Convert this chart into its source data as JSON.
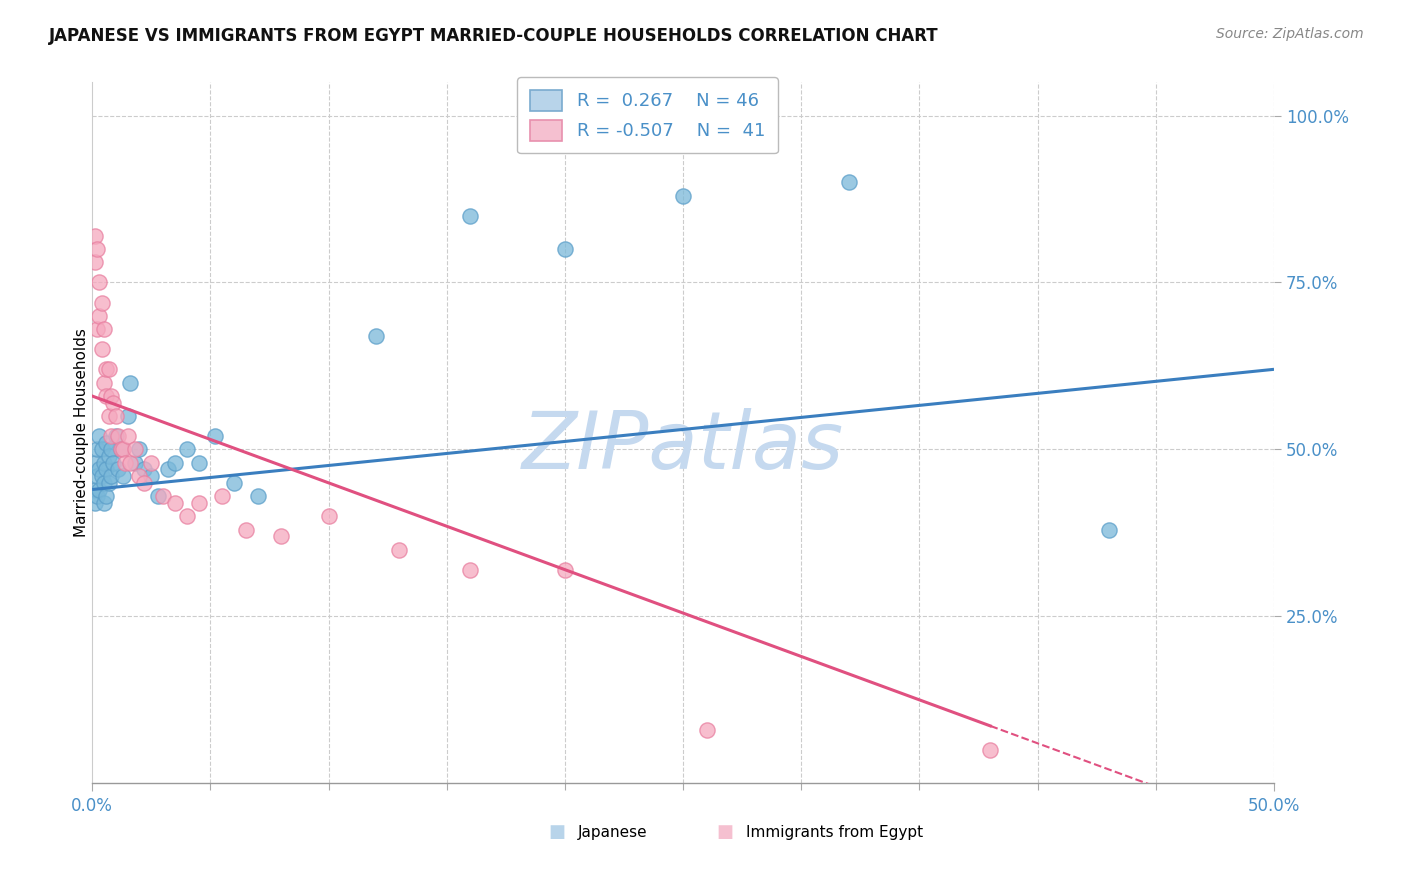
{
  "title": "JAPANESE VS IMMIGRANTS FROM EGYPT MARRIED-COUPLE HOUSEHOLDS CORRELATION CHART",
  "source": "Source: ZipAtlas.com",
  "ylabel_label": "Married-couple Households",
  "r_japanese": 0.267,
  "n_japanese": 46,
  "r_egypt": -0.507,
  "n_egypt": 41,
  "blue_scatter": "#7ab8d9",
  "blue_edge": "#5b9ec9",
  "pink_scatter": "#f5a8be",
  "pink_edge": "#e87fa0",
  "trend_blue": "#3a7ebf",
  "trend_pink": "#e05080",
  "watermark_color": "#c5d9ef",
  "xlim": [
    0.0,
    0.5
  ],
  "ylim": [
    0.0,
    1.05
  ],
  "japanese_x": [
    0.001,
    0.001,
    0.001,
    0.002,
    0.002,
    0.002,
    0.003,
    0.003,
    0.003,
    0.004,
    0.004,
    0.005,
    0.005,
    0.005,
    0.006,
    0.006,
    0.006,
    0.007,
    0.007,
    0.008,
    0.008,
    0.009,
    0.01,
    0.011,
    0.012,
    0.013,
    0.015,
    0.016,
    0.018,
    0.02,
    0.022,
    0.025,
    0.028,
    0.032,
    0.035,
    0.04,
    0.045,
    0.052,
    0.06,
    0.07,
    0.12,
    0.16,
    0.2,
    0.25,
    0.32,
    0.43
  ],
  "japanese_y": [
    0.48,
    0.44,
    0.42,
    0.5,
    0.46,
    0.43,
    0.52,
    0.47,
    0.44,
    0.5,
    0.46,
    0.48,
    0.45,
    0.42,
    0.51,
    0.47,
    0.43,
    0.49,
    0.45,
    0.5,
    0.46,
    0.48,
    0.52,
    0.47,
    0.5,
    0.46,
    0.55,
    0.6,
    0.48,
    0.5,
    0.47,
    0.46,
    0.43,
    0.47,
    0.48,
    0.5,
    0.48,
    0.52,
    0.45,
    0.43,
    0.67,
    0.85,
    0.8,
    0.88,
    0.9,
    0.38
  ],
  "egypt_x": [
    0.001,
    0.001,
    0.002,
    0.002,
    0.003,
    0.003,
    0.004,
    0.004,
    0.005,
    0.005,
    0.006,
    0.006,
    0.007,
    0.007,
    0.008,
    0.008,
    0.009,
    0.01,
    0.011,
    0.012,
    0.013,
    0.014,
    0.015,
    0.016,
    0.018,
    0.02,
    0.022,
    0.025,
    0.03,
    0.035,
    0.04,
    0.045,
    0.055,
    0.065,
    0.08,
    0.1,
    0.13,
    0.16,
    0.2,
    0.26,
    0.38
  ],
  "egypt_y": [
    0.78,
    0.82,
    0.8,
    0.68,
    0.75,
    0.7,
    0.72,
    0.65,
    0.68,
    0.6,
    0.62,
    0.58,
    0.62,
    0.55,
    0.58,
    0.52,
    0.57,
    0.55,
    0.52,
    0.5,
    0.5,
    0.48,
    0.52,
    0.48,
    0.5,
    0.46,
    0.45,
    0.48,
    0.43,
    0.42,
    0.4,
    0.42,
    0.43,
    0.38,
    0.37,
    0.4,
    0.35,
    0.32,
    0.32,
    0.08,
    0.05
  ]
}
